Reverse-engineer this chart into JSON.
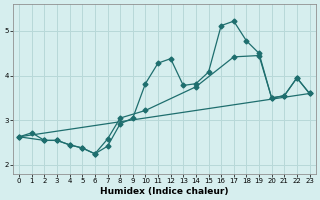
{
  "xlabel": "Humidex (Indice chaleur)",
  "xlim": [
    -0.5,
    23.5
  ],
  "ylim": [
    1.8,
    5.6
  ],
  "xticks": [
    0,
    1,
    2,
    3,
    4,
    5,
    6,
    7,
    8,
    9,
    10,
    11,
    12,
    13,
    14,
    15,
    16,
    17,
    18,
    19,
    20,
    21,
    22,
    23
  ],
  "yticks": [
    2,
    3,
    4,
    5
  ],
  "bg_color": "#d6eeee",
  "grid_color": "#b8d8d8",
  "line_color": "#1e6e6e",
  "line1_x": [
    0,
    1,
    2,
    3,
    4,
    5,
    6,
    7,
    8,
    9,
    10,
    11,
    12,
    13,
    14,
    15,
    16,
    17,
    18,
    19,
    20,
    21,
    22,
    23
  ],
  "line1_y": [
    2.63,
    2.72,
    2.55,
    2.55,
    2.45,
    2.38,
    2.25,
    2.42,
    2.92,
    3.05,
    3.82,
    4.28,
    4.38,
    3.78,
    3.82,
    4.08,
    5.12,
    5.22,
    4.78,
    4.5,
    3.5,
    3.55,
    3.95,
    3.6
  ],
  "line2_x": [
    0,
    23
  ],
  "line2_y": [
    2.63,
    3.6
  ],
  "line3_x": [
    0,
    2,
    3,
    4,
    5,
    6,
    7,
    8,
    10,
    14,
    17,
    19,
    20,
    21,
    22,
    23
  ],
  "line3_y": [
    2.63,
    2.55,
    2.55,
    2.45,
    2.38,
    2.25,
    2.58,
    3.05,
    3.22,
    3.75,
    4.42,
    4.45,
    3.5,
    3.55,
    3.95,
    3.6
  ]
}
